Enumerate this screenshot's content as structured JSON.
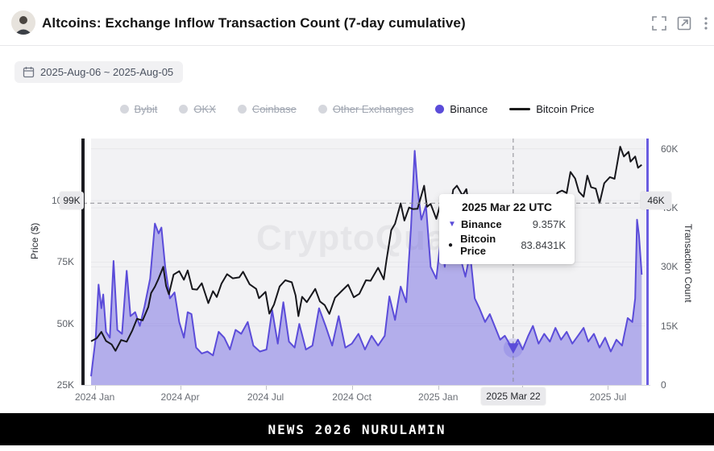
{
  "header": {
    "title": "Altcoins: Exchange Inflow Transaction Count (7-day cumulative)"
  },
  "toolbar": {
    "date_range": "2025-Aug-06 ~ 2025-Aug-05"
  },
  "legend": {
    "items": [
      {
        "label": "Bybit",
        "disabled": true,
        "marker": "dot",
        "color": "#d5d7dd"
      },
      {
        "label": "OKX",
        "disabled": true,
        "marker": "dot",
        "color": "#d5d7dd"
      },
      {
        "label": "Coinbase",
        "disabled": true,
        "marker": "dot",
        "color": "#d5d7dd"
      },
      {
        "label": "Other Exchanges",
        "disabled": true,
        "marker": "dot",
        "color": "#d5d7dd"
      },
      {
        "label": "Binance",
        "disabled": false,
        "marker": "dot",
        "color": "#5b4cd9"
      },
      {
        "label": "Bitcoin Price",
        "disabled": false,
        "marker": "line",
        "color": "#1a1a1a"
      }
    ]
  },
  "chart_data": {
    "type": "area",
    "watermark": "CryptoQuant",
    "x_axis": {
      "domain": [
        "2023-12-28",
        "2025-08-10"
      ],
      "ticks": [
        {
          "label": "2024 Jan",
          "date": "2024-01-01"
        },
        {
          "label": "2024 Apr",
          "date": "2024-04-01"
        },
        {
          "label": "2024 Jul",
          "date": "2024-07-01"
        },
        {
          "label": "2024 Oct",
          "date": "2024-10-01"
        },
        {
          "label": "2025 Jan",
          "date": "2025-01-01"
        },
        {
          "label": "2025 Apr",
          "date": "2025-04-01"
        },
        {
          "label": "2025 Jul",
          "date": "2025-07-01"
        }
      ]
    },
    "left_axis": {
      "title": "Price ($)",
      "range": [
        25,
        125.3
      ],
      "ticks": [
        {
          "label": "100K",
          "value": 100
        },
        {
          "label": "75K",
          "value": 75
        },
        {
          "label": "50K",
          "value": 50
        },
        {
          "label": "25K",
          "value": 25
        }
      ]
    },
    "right_axis": {
      "title": "Transaction Count",
      "range": [
        0,
        62.6
      ],
      "ticks": [
        {
          "label": "60K",
          "value": 60
        },
        {
          "label": "45K",
          "value": 45
        },
        {
          "label": "30K",
          "value": 30
        },
        {
          "label": "15K",
          "value": 15
        },
        {
          "label": "0",
          "value": 0
        }
      ]
    },
    "series": [
      {
        "name": "Binance",
        "kind": "area",
        "axis": "right",
        "color": "#5b4cd9",
        "fill": "rgba(102,91,224,0.45)",
        "points": [
          [
            "2023-12-28",
            2.2
          ],
          [
            "2024-01-02",
            12.0
          ],
          [
            "2024-01-05",
            25.5
          ],
          [
            "2024-01-08",
            19.5
          ],
          [
            "2024-01-10",
            23.0
          ],
          [
            "2024-01-13",
            13.5
          ],
          [
            "2024-01-17",
            12.0
          ],
          [
            "2024-01-21",
            31.5
          ],
          [
            "2024-01-25",
            14.0
          ],
          [
            "2024-01-30",
            13.0
          ],
          [
            "2024-02-04",
            29.0
          ],
          [
            "2024-02-08",
            17.5
          ],
          [
            "2024-02-13",
            18.5
          ],
          [
            "2024-02-18",
            15.0
          ],
          [
            "2024-02-23",
            20.0
          ],
          [
            "2024-02-29",
            27.0
          ],
          [
            "2024-03-05",
            41.0
          ],
          [
            "2024-03-09",
            38.5
          ],
          [
            "2024-03-12",
            40.0
          ],
          [
            "2024-03-16",
            30.0
          ],
          [
            "2024-03-21",
            22.0
          ],
          [
            "2024-03-26",
            23.5
          ],
          [
            "2024-03-31",
            16.0
          ],
          [
            "2024-04-05",
            12.0
          ],
          [
            "2024-04-09",
            18.5
          ],
          [
            "2024-04-13",
            18.0
          ],
          [
            "2024-04-18",
            9.5
          ],
          [
            "2024-04-24",
            8.0
          ],
          [
            "2024-04-30",
            8.5
          ],
          [
            "2024-05-06",
            7.5
          ],
          [
            "2024-05-12",
            13.5
          ],
          [
            "2024-05-18",
            12.0
          ],
          [
            "2024-05-24",
            9.0
          ],
          [
            "2024-05-30",
            14.0
          ],
          [
            "2024-06-05",
            13.0
          ],
          [
            "2024-06-12",
            16.0
          ],
          [
            "2024-06-18",
            10.0
          ],
          [
            "2024-06-25",
            8.5
          ],
          [
            "2024-07-02",
            9.0
          ],
          [
            "2024-07-08",
            19.0
          ],
          [
            "2024-07-14",
            10.5
          ],
          [
            "2024-07-20",
            21.0
          ],
          [
            "2024-07-26",
            11.0
          ],
          [
            "2024-08-01",
            9.5
          ],
          [
            "2024-08-06",
            15.5
          ],
          [
            "2024-08-13",
            9.0
          ],
          [
            "2024-08-20",
            10.0
          ],
          [
            "2024-08-27",
            19.5
          ],
          [
            "2024-09-03",
            15.0
          ],
          [
            "2024-09-10",
            10.0
          ],
          [
            "2024-09-17",
            17.5
          ],
          [
            "2024-09-24",
            9.5
          ],
          [
            "2024-10-01",
            10.5
          ],
          [
            "2024-10-08",
            13.0
          ],
          [
            "2024-10-15",
            9.0
          ],
          [
            "2024-10-22",
            12.5
          ],
          [
            "2024-10-29",
            10.0
          ],
          [
            "2024-11-05",
            12.5
          ],
          [
            "2024-11-10",
            22.5
          ],
          [
            "2024-11-16",
            16.5
          ],
          [
            "2024-11-22",
            25.0
          ],
          [
            "2024-11-28",
            21.0
          ],
          [
            "2024-12-03",
            40.0
          ],
          [
            "2024-12-07",
            59.5
          ],
          [
            "2024-12-10",
            50.0
          ],
          [
            "2024-12-14",
            42.0
          ],
          [
            "2024-12-19",
            45.5
          ],
          [
            "2024-12-24",
            30.0
          ],
          [
            "2024-12-30",
            27.0
          ],
          [
            "2025-01-04",
            37.5
          ],
          [
            "2025-01-08",
            30.0
          ],
          [
            "2025-01-13",
            44.5
          ],
          [
            "2025-01-19",
            41.0
          ],
          [
            "2025-01-24",
            33.0
          ],
          [
            "2025-01-30",
            27.5
          ],
          [
            "2025-02-04",
            33.5
          ],
          [
            "2025-02-09",
            22.0
          ],
          [
            "2025-02-14",
            19.5
          ],
          [
            "2025-02-20",
            16.0
          ],
          [
            "2025-02-25",
            18.0
          ],
          [
            "2025-03-03",
            14.5
          ],
          [
            "2025-03-08",
            11.5
          ],
          [
            "2025-03-13",
            12.5
          ],
          [
            "2025-03-18",
            10.5
          ],
          [
            "2025-03-22",
            9.357
          ],
          [
            "2025-03-27",
            11.5
          ],
          [
            "2025-04-01",
            9.0
          ],
          [
            "2025-04-07",
            12.5
          ],
          [
            "2025-04-12",
            15.0
          ],
          [
            "2025-04-18",
            10.5
          ],
          [
            "2025-04-24",
            13.0
          ],
          [
            "2025-04-30",
            11.0
          ],
          [
            "2025-05-06",
            14.5
          ],
          [
            "2025-05-12",
            11.5
          ],
          [
            "2025-05-18",
            13.5
          ],
          [
            "2025-05-24",
            10.5
          ],
          [
            "2025-05-30",
            12.5
          ],
          [
            "2025-06-05",
            14.5
          ],
          [
            "2025-06-10",
            11.0
          ],
          [
            "2025-06-16",
            13.0
          ],
          [
            "2025-06-22",
            9.5
          ],
          [
            "2025-06-28",
            12.0
          ],
          [
            "2025-07-04",
            8.5
          ],
          [
            "2025-07-10",
            11.5
          ],
          [
            "2025-07-16",
            10.0
          ],
          [
            "2025-07-22",
            17.0
          ],
          [
            "2025-07-27",
            16.0
          ],
          [
            "2025-07-30",
            22.0
          ],
          [
            "2025-08-01",
            42.0
          ],
          [
            "2025-08-03",
            38.0
          ],
          [
            "2025-08-06",
            28.0
          ]
        ]
      },
      {
        "name": "Bitcoin Price",
        "kind": "line",
        "axis": "left",
        "color": "#17171c",
        "fill": "none",
        "points": [
          [
            "2023-12-28",
            42.8
          ],
          [
            "2024-01-03",
            44.0
          ],
          [
            "2024-01-08",
            46.6
          ],
          [
            "2024-01-13",
            42.9
          ],
          [
            "2024-01-19",
            41.5
          ],
          [
            "2024-01-23",
            38.9
          ],
          [
            "2024-01-29",
            43.3
          ],
          [
            "2024-02-04",
            42.6
          ],
          [
            "2024-02-10",
            47.2
          ],
          [
            "2024-02-15",
            51.9
          ],
          [
            "2024-02-21",
            51.3
          ],
          [
            "2024-02-27",
            56.7
          ],
          [
            "2024-03-01",
            62.4
          ],
          [
            "2024-03-05",
            65.0
          ],
          [
            "2024-03-09",
            68.3
          ],
          [
            "2024-03-14",
            73.1
          ],
          [
            "2024-03-17",
            65.3
          ],
          [
            "2024-03-20",
            61.9
          ],
          [
            "2024-03-25",
            69.9
          ],
          [
            "2024-03-31",
            71.3
          ],
          [
            "2024-04-05",
            67.8
          ],
          [
            "2024-04-09",
            71.6
          ],
          [
            "2024-04-14",
            64.0
          ],
          [
            "2024-04-19",
            63.8
          ],
          [
            "2024-04-24",
            66.4
          ],
          [
            "2024-05-01",
            58.3
          ],
          [
            "2024-05-06",
            63.2
          ],
          [
            "2024-05-10",
            60.8
          ],
          [
            "2024-05-15",
            66.2
          ],
          [
            "2024-05-21",
            70.1
          ],
          [
            "2024-05-27",
            68.4
          ],
          [
            "2024-06-03",
            68.8
          ],
          [
            "2024-06-07",
            71.1
          ],
          [
            "2024-06-14",
            66.0
          ],
          [
            "2024-06-21",
            64.1
          ],
          [
            "2024-06-24",
            60.3
          ],
          [
            "2024-07-01",
            62.9
          ],
          [
            "2024-07-05",
            54.0
          ],
          [
            "2024-07-10",
            57.7
          ],
          [
            "2024-07-16",
            65.1
          ],
          [
            "2024-07-22",
            67.6
          ],
          [
            "2024-07-29",
            66.8
          ],
          [
            "2024-08-02",
            61.4
          ],
          [
            "2024-08-05",
            53.0
          ],
          [
            "2024-08-09",
            60.9
          ],
          [
            "2024-08-14",
            58.7
          ],
          [
            "2024-08-23",
            64.1
          ],
          [
            "2024-08-28",
            59.0
          ],
          [
            "2024-09-02",
            57.5
          ],
          [
            "2024-09-07",
            53.9
          ],
          [
            "2024-09-13",
            60.5
          ],
          [
            "2024-09-20",
            63.2
          ],
          [
            "2024-09-27",
            65.8
          ],
          [
            "2024-10-03",
            60.7
          ],
          [
            "2024-10-09",
            62.1
          ],
          [
            "2024-10-16",
            67.6
          ],
          [
            "2024-10-21",
            67.4
          ],
          [
            "2024-10-29",
            72.7
          ],
          [
            "2024-11-04",
            68.0
          ],
          [
            "2024-11-07",
            76.0
          ],
          [
            "2024-11-12",
            88.0
          ],
          [
            "2024-11-16",
            90.6
          ],
          [
            "2024-11-22",
            98.9
          ],
          [
            "2024-11-26",
            91.9
          ],
          [
            "2024-12-01",
            97.2
          ],
          [
            "2024-12-05",
            96.6
          ],
          [
            "2024-12-10",
            96.7
          ],
          [
            "2024-12-17",
            106.1
          ],
          [
            "2024-12-20",
            97.5
          ],
          [
            "2024-12-24",
            98.7
          ],
          [
            "2024-12-30",
            92.6
          ],
          [
            "2025-01-06",
            102.1
          ],
          [
            "2025-01-09",
            92.5
          ],
          [
            "2025-01-13",
            94.5
          ],
          [
            "2025-01-17",
            104.5
          ],
          [
            "2025-01-21",
            106.1
          ],
          [
            "2025-01-27",
            102.1
          ],
          [
            "2025-01-31",
            104.7
          ],
          [
            "2025-02-03",
            97.7
          ],
          [
            "2025-02-08",
            96.5
          ],
          [
            "2025-02-14",
            97.5
          ],
          [
            "2025-02-21",
            96.2
          ],
          [
            "2025-02-26",
            84.3
          ],
          [
            "2025-03-02",
            94.3
          ],
          [
            "2025-03-06",
            90.6
          ],
          [
            "2025-03-10",
            78.6
          ],
          [
            "2025-03-14",
            83.9
          ],
          [
            "2025-03-18",
            82.7
          ],
          [
            "2025-03-22",
            83.8431
          ],
          [
            "2025-03-26",
            86.9
          ],
          [
            "2025-03-31",
            82.5
          ],
          [
            "2025-04-06",
            78.2
          ],
          [
            "2025-04-08",
            76.3
          ],
          [
            "2025-04-13",
            83.7
          ],
          [
            "2025-04-17",
            84.0
          ],
          [
            "2025-04-22",
            93.4
          ],
          [
            "2025-04-28",
            94.2
          ],
          [
            "2025-05-04",
            94.3
          ],
          [
            "2025-05-08",
            103.2
          ],
          [
            "2025-05-13",
            104.1
          ],
          [
            "2025-05-18",
            103.1
          ],
          [
            "2025-05-22",
            111.7
          ],
          [
            "2025-05-27",
            109.0
          ],
          [
            "2025-05-31",
            103.7
          ],
          [
            "2025-06-05",
            101.6
          ],
          [
            "2025-06-09",
            110.2
          ],
          [
            "2025-06-13",
            105.5
          ],
          [
            "2025-06-18",
            104.9
          ],
          [
            "2025-06-22",
            99.0
          ],
          [
            "2025-06-27",
            107.1
          ],
          [
            "2025-07-03",
            109.6
          ],
          [
            "2025-07-08",
            108.9
          ],
          [
            "2025-07-14",
            122.0
          ],
          [
            "2025-07-18",
            118.0
          ],
          [
            "2025-07-23",
            119.9
          ],
          [
            "2025-07-25",
            115.9
          ],
          [
            "2025-07-30",
            118.0
          ],
          [
            "2025-08-02",
            113.4
          ],
          [
            "2025-08-06",
            114.6
          ]
        ]
      }
    ],
    "crosshair": {
      "date": "2025-03-22",
      "x_label": "2025 Mar 22",
      "y_left_label": "99K",
      "y_right_label": "46K",
      "price_k": 99,
      "count_k": 9.357
    },
    "tooltip": {
      "title": "2025 Mar 22 UTC",
      "rows": [
        {
          "marker": "▼",
          "name": "Binance",
          "value": "9.357K",
          "color": "#5b4cd9"
        },
        {
          "marker": "●",
          "name": "Bitcoin Price",
          "value": "83.8431K",
          "color": "#17171c"
        }
      ]
    }
  },
  "footer": {
    "text": "NEWS 2026 NURULAMIN"
  }
}
